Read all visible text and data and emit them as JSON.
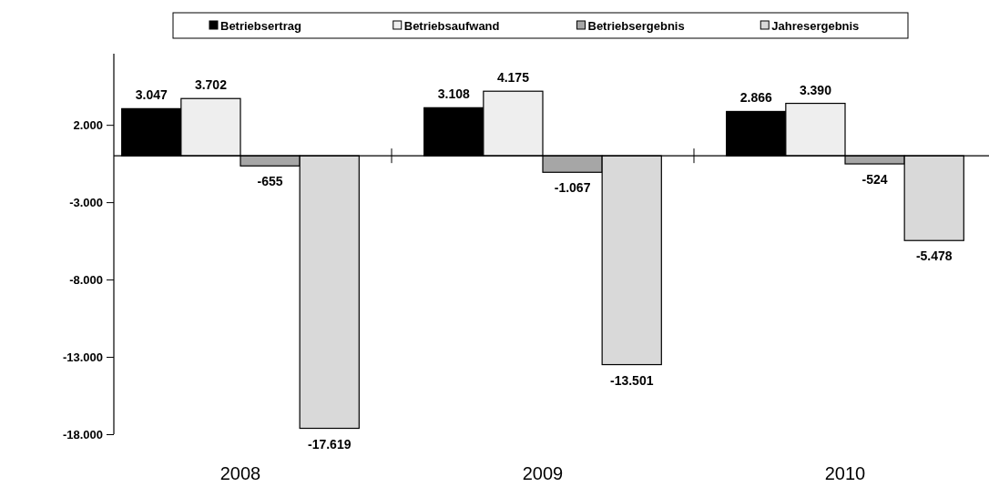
{
  "chart_data": {
    "type": "bar",
    "categories": [
      "2008",
      "2009",
      "2010"
    ],
    "series": [
      {
        "name": "Betriebsertrag",
        "color": "#000000",
        "values": [
          3047,
          3108,
          2866
        ],
        "value_labels": [
          "3.047",
          "3.108",
          "2.866"
        ]
      },
      {
        "name": "Betriebsaufwand",
        "color": "#eeeeee",
        "values": [
          3702,
          4175,
          3390
        ],
        "value_labels": [
          "3.702",
          "4.175",
          "3.390"
        ]
      },
      {
        "name": "Betriebsergebnis",
        "color": "#a6a6a6",
        "values": [
          -655,
          -1067,
          -524
        ],
        "value_labels": [
          "-655",
          "-1.067",
          "-524"
        ]
      },
      {
        "name": "Jahresergebnis",
        "color": "#d9d9d9",
        "values": [
          -17619,
          -13501,
          -5478
        ],
        "value_labels": [
          "-17.619",
          "-13.501",
          "-5.478"
        ]
      }
    ],
    "ylim": [
      -18000,
      6600
    ],
    "yticks": [
      {
        "value": -18000,
        "label": "-18.000"
      },
      {
        "value": -13000,
        "label": "-13.000"
      },
      {
        "value": -8000,
        "label": "-8.000"
      },
      {
        "value": -3000,
        "label": "-3.000"
      },
      {
        "value": 2000,
        "label": "2.000"
      }
    ],
    "legend": "top",
    "grid": false
  }
}
